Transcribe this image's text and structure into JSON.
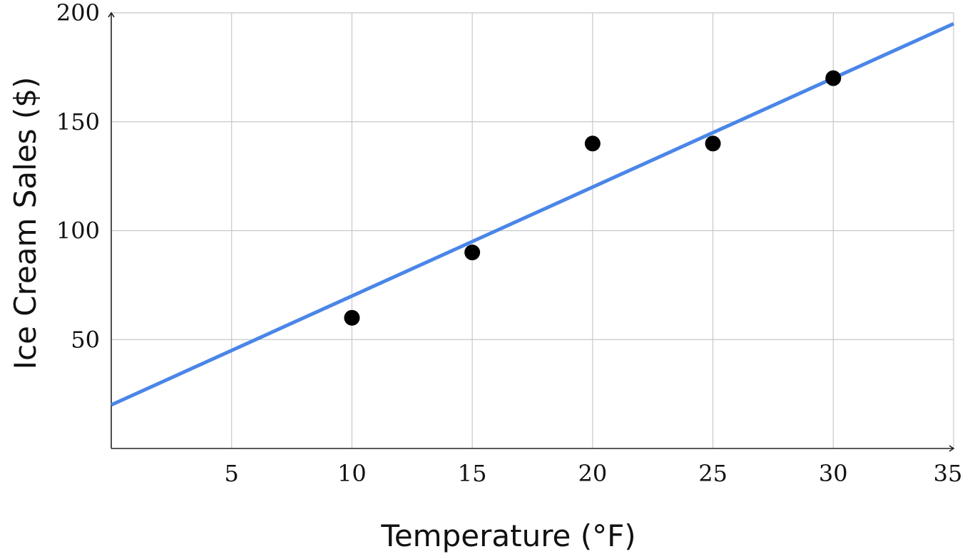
{
  "chart_data": {
    "type": "scatter",
    "title": "",
    "xlabel": "Temperature (°F)",
    "ylabel": "Ice Cream Sales ($)",
    "xlim": [
      0,
      35
    ],
    "ylim": [
      0,
      200
    ],
    "x_ticks": [
      5,
      10,
      15,
      20,
      25,
      30,
      35
    ],
    "y_ticks": [
      50,
      100,
      150,
      200
    ],
    "grid": true,
    "legend": "none",
    "points": [
      {
        "x": 10,
        "y": 60
      },
      {
        "x": 15,
        "y": 90
      },
      {
        "x": 20,
        "y": 140
      },
      {
        "x": 25,
        "y": 140
      },
      {
        "x": 30,
        "y": 170
      }
    ],
    "trend_line": {
      "x": [
        0,
        35
      ],
      "y": [
        20,
        195
      ]
    },
    "colors": {
      "points": "#000000",
      "trend_line": "#4a86e8"
    }
  }
}
